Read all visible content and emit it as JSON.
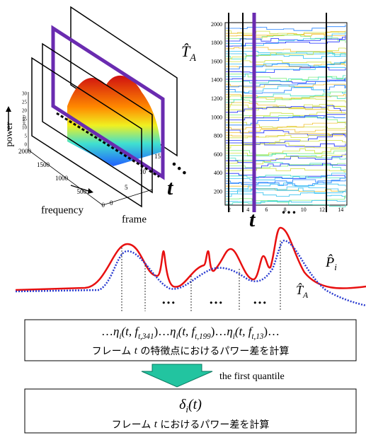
{
  "plot3d": {
    "z_label": "power",
    "z_axis_title": "power",
    "z_ticks": [
      "0",
      "5",
      "10",
      "15",
      "20",
      "25",
      "30"
    ],
    "frequency_label": "frequency",
    "frequency_ticks": [
      "2000",
      "1500",
      "1000",
      "500",
      "0"
    ],
    "frame_label": "frame",
    "frame_ticks": [
      "0",
      "5",
      "10",
      "15"
    ],
    "time_label": "t",
    "ellipsis": "…"
  },
  "map": {
    "label": {
      "main": "T̂",
      "sub": "A"
    },
    "y_ticks": [
      "2000",
      "1800",
      "1600",
      "1400",
      "1200",
      "1000",
      "800",
      "600",
      "400",
      "200"
    ],
    "x_ticks": [
      "2",
      "4",
      "6",
      "8",
      "10",
      "12",
      "14"
    ],
    "time_label": "t",
    "ellipsis": "…"
  },
  "curve": {
    "p_label": {
      "main": "P̂",
      "sub": "i"
    },
    "t_label": {
      "main": "T̂",
      "sub": "A"
    },
    "ellipses": [
      "…",
      "…",
      "…"
    ]
  },
  "difference_box": {
    "ellipsis": "…",
    "terms": [
      {
        "symbol": "η",
        "index": "i",
        "args": "(t, f",
        "f_index": "t,341",
        "close": ")"
      },
      {
        "symbol": "η",
        "index": "i",
        "args": "(t, f",
        "f_index": "t,199",
        "close": ")"
      },
      {
        "symbol": "η",
        "index": "i",
        "args": "(t, f",
        "f_index": "t,13",
        "close": ")"
      }
    ],
    "caption": {
      "before": "フレーム ",
      "var": "t",
      "after": " の特徴点におけるパワー差を計算"
    }
  },
  "arrow_label": "the first quantile",
  "result_box": {
    "formula": {
      "main": "δ",
      "sub": "i",
      "rest": "(t)"
    },
    "caption": {
      "before": "フレーム ",
      "var": "t",
      "after": " におけるパワー差を計算"
    }
  }
}
